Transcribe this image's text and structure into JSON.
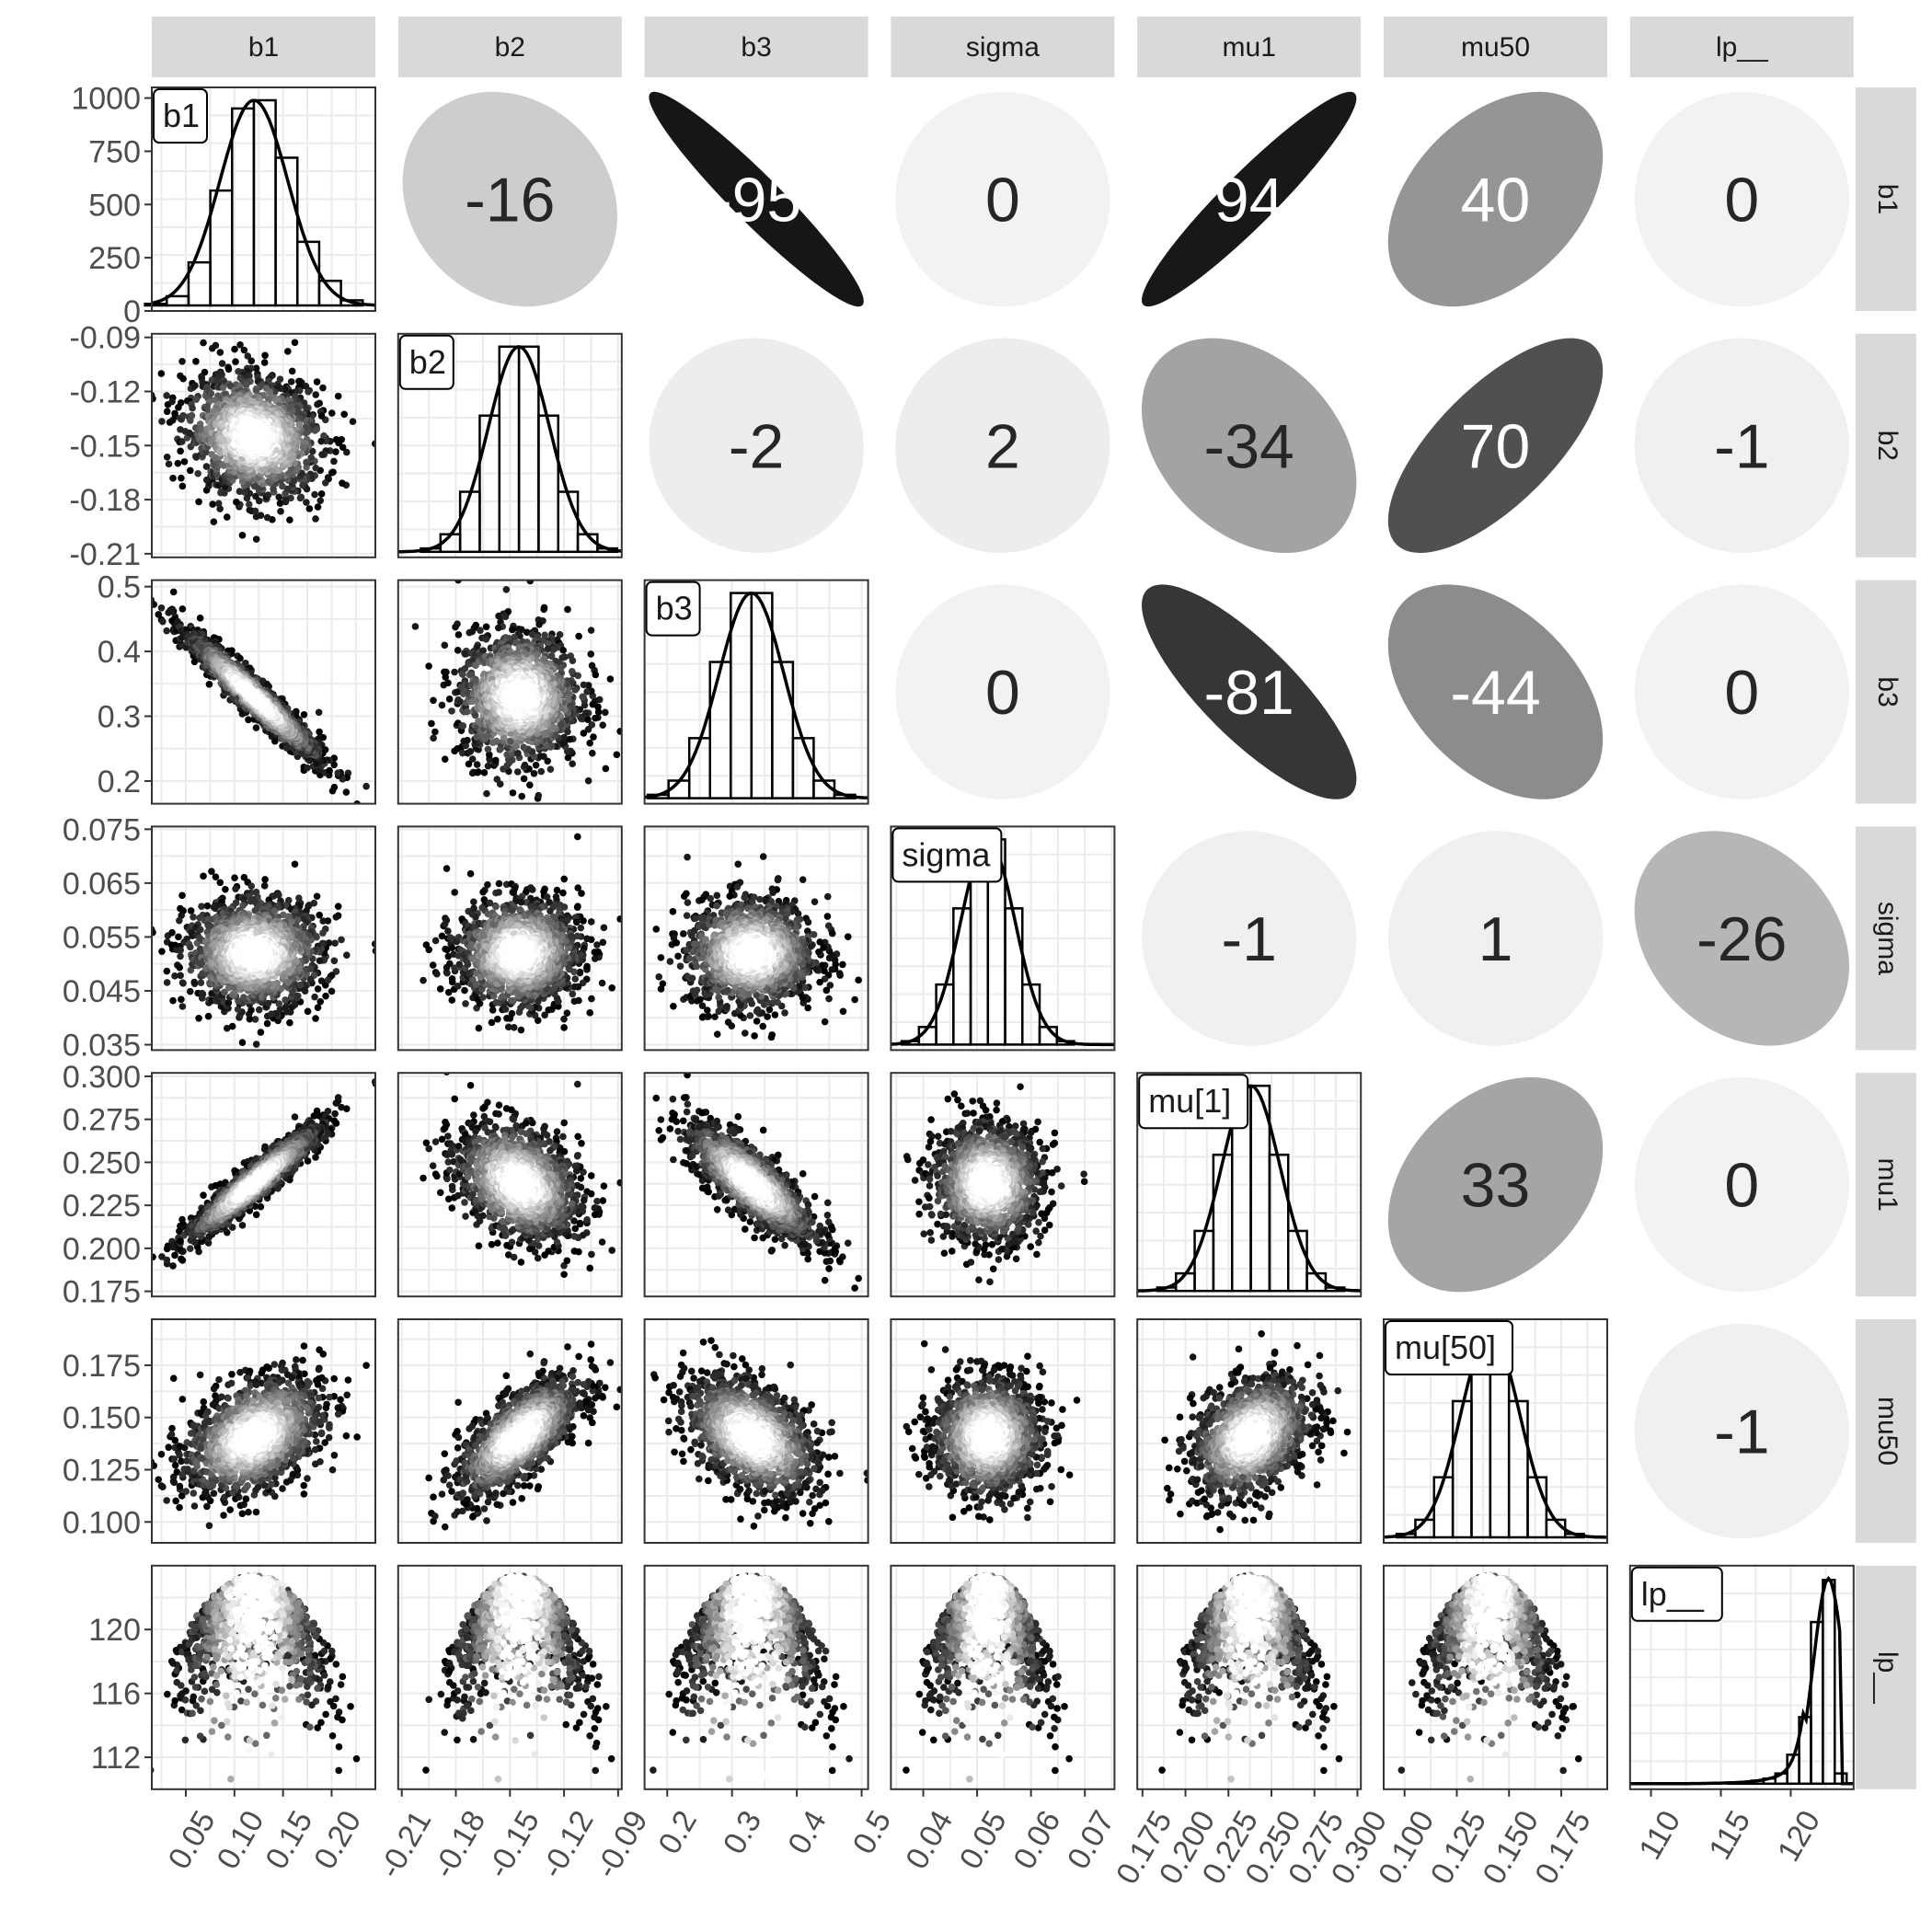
{
  "chart_data": {
    "type": "pairs-matrix",
    "variables": [
      "b1",
      "b2",
      "b3",
      "sigma",
      "mu1",
      "mu50",
      "lp__"
    ],
    "column_strips": [
      "b1",
      "b2",
      "b3",
      "sigma",
      "mu1",
      "mu50",
      "lp__"
    ],
    "row_strips": [
      "b1",
      "b2",
      "b3",
      "sigma",
      "mu1",
      "mu50",
      "lp__"
    ],
    "histogram_labels": [
      "b1",
      "b2",
      "b3",
      "sigma",
      "mu[1]",
      "mu[50]",
      "lp__"
    ],
    "correlations": [
      {
        "row": "b1",
        "col": "b2",
        "value": -16,
        "label": "-16"
      },
      {
        "row": "b1",
        "col": "b3",
        "value": -95,
        "label": "-95"
      },
      {
        "row": "b1",
        "col": "sigma",
        "value": 0,
        "label": "0"
      },
      {
        "row": "b1",
        "col": "mu1",
        "value": 94,
        "label": "94"
      },
      {
        "row": "b1",
        "col": "mu50",
        "value": 40,
        "label": "40"
      },
      {
        "row": "b1",
        "col": "lp__",
        "value": 0,
        "label": "0"
      },
      {
        "row": "b2",
        "col": "b3",
        "value": -2,
        "label": "-2"
      },
      {
        "row": "b2",
        "col": "sigma",
        "value": 2,
        "label": "2"
      },
      {
        "row": "b2",
        "col": "mu1",
        "value": -34,
        "label": "-34"
      },
      {
        "row": "b2",
        "col": "mu50",
        "value": 70,
        "label": "70"
      },
      {
        "row": "b2",
        "col": "lp__",
        "value": -1,
        "label": "-1"
      },
      {
        "row": "b3",
        "col": "sigma",
        "value": 0,
        "label": "0"
      },
      {
        "row": "b3",
        "col": "mu1",
        "value": -81,
        "label": "-81"
      },
      {
        "row": "b3",
        "col": "mu50",
        "value": -44,
        "label": "-44"
      },
      {
        "row": "b3",
        "col": "lp__",
        "value": 0,
        "label": "0"
      },
      {
        "row": "sigma",
        "col": "mu1",
        "value": -1,
        "label": "-1"
      },
      {
        "row": "sigma",
        "col": "mu50",
        "value": 1,
        "label": "1"
      },
      {
        "row": "sigma",
        "col": "lp__",
        "value": -26,
        "label": "-26"
      },
      {
        "row": "mu1",
        "col": "mu50",
        "value": 33,
        "label": "33"
      },
      {
        "row": "mu1",
        "col": "lp__",
        "value": 0,
        "label": "0"
      },
      {
        "row": "mu50",
        "col": "lp__",
        "value": -1,
        "label": "-1"
      }
    ],
    "axes": {
      "b1": {
        "range": [
          0.015,
          0.245
        ],
        "ticks": [
          0.05,
          0.1,
          0.15,
          0.2
        ],
        "tick_labels": [
          "0.05",
          "0.10",
          "0.15",
          "0.20"
        ],
        "mean": 0.12,
        "sd": 0.035
      },
      "b2": {
        "range": [
          -0.212,
          -0.088
        ],
        "ticks": [
          -0.21,
          -0.18,
          -0.15,
          -0.12,
          -0.09
        ],
        "tick_labels": [
          "-0.21",
          "-0.18",
          "-0.15",
          "-0.12",
          "-0.09"
        ],
        "mean": -0.145,
        "sd": 0.017
      },
      "b3": {
        "range": [
          0.165,
          0.51
        ],
        "ticks": [
          0.2,
          0.3,
          0.4,
          0.5
        ],
        "tick_labels": [
          "0.2",
          "0.3",
          "0.4",
          "0.5"
        ],
        "mean": 0.33,
        "sd": 0.05
      },
      "sigma": {
        "range": [
          0.034,
          0.0755
        ],
        "ticks": [
          0.035,
          0.045,
          0.055,
          0.065,
          0.075
        ],
        "tick_labels": [
          "0.035",
          "0.045",
          "0.055",
          "0.065",
          "0.075"
        ],
        "x_ticks": [
          0.04,
          0.05,
          0.06,
          0.07
        ],
        "x_tick_labels": [
          "0.04",
          "0.05",
          "0.06",
          "0.07"
        ],
        "mean": 0.052,
        "sd": 0.005
      },
      "mu1": {
        "range": [
          0.172,
          0.302
        ],
        "ticks": [
          0.175,
          0.2,
          0.225,
          0.25,
          0.275,
          0.3
        ],
        "tick_labels": [
          "0.175",
          "0.200",
          "0.225",
          "0.250",
          "0.275",
          "0.300"
        ],
        "mean": 0.238,
        "sd": 0.017
      },
      "mu50": {
        "range": [
          0.09,
          0.197
        ],
        "ticks": [
          0.1,
          0.125,
          0.15,
          0.175
        ],
        "tick_labels": [
          "0.100",
          "0.125",
          "0.150",
          "0.175"
        ],
        "mean": 0.141,
        "sd": 0.014
      },
      "lp__": {
        "range": [
          110,
          124
        ],
        "ticks": [
          112,
          116,
          120
        ],
        "tick_labels": [
          "112",
          "116",
          "120"
        ],
        "x_range": [
          108.5,
          124.5
        ],
        "x_ticks": [
          110,
          115,
          120
        ],
        "x_tick_labels": [
          "110",
          "115",
          "120"
        ],
        "mean": 121.5,
        "sd": 1.6
      }
    },
    "b1_count_axis": {
      "range": [
        0,
        1050
      ],
      "ticks": [
        0,
        250,
        500,
        750,
        1000
      ],
      "tick_labels": [
        "0",
        "250",
        "500",
        "750",
        "1000"
      ]
    },
    "b1_histogram_counts": [
      8,
      45,
      210,
      560,
      960,
      1000,
      720,
      310,
      120,
      25
    ],
    "colors": {
      "strip_background": "#d9d9d9",
      "panel_background": "#ffffff",
      "grid": "#ebebeb",
      "hex_low": "#000000",
      "hex_high": "#ffffff",
      "ellipse_strong": "#0d0d0d",
      "ellipse_weak": "#f2f2f2"
    }
  }
}
